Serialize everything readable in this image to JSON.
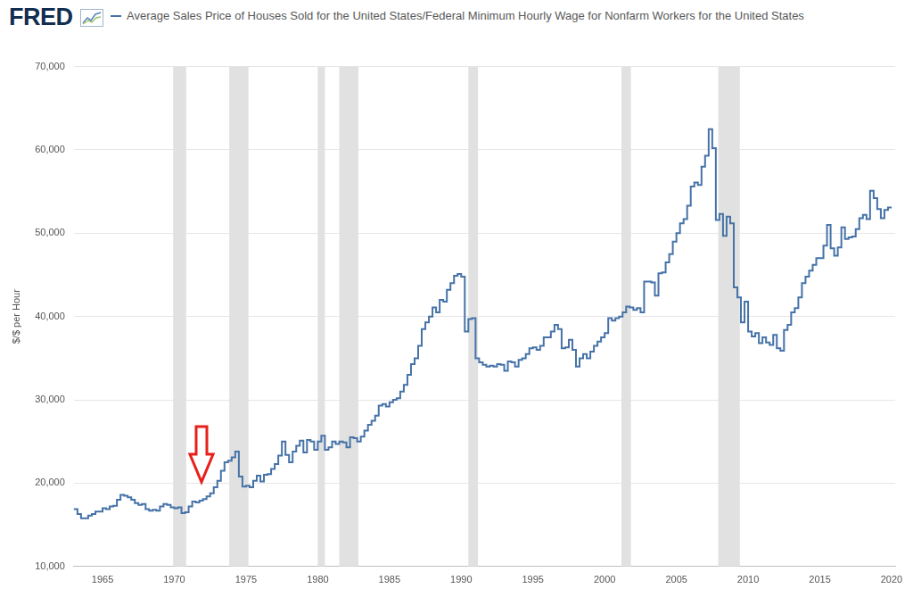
{
  "chart_data": {
    "type": "line",
    "logo": "FRED",
    "title": "Average Sales Price of Houses Sold for the United States/Federal Minimum Hourly Wage for Nonfarm Workers for the United States",
    "y_label": "$/$ per Hour",
    "color": "#4572a7",
    "line_style": "step",
    "grid": true,
    "x": [
      1963,
      1963.25,
      1963.5,
      1963.75,
      1964,
      1964.25,
      1964.5,
      1964.75,
      1965,
      1965.25,
      1965.5,
      1965.75,
      1966,
      1966.25,
      1966.5,
      1966.75,
      1967,
      1967.25,
      1967.5,
      1967.75,
      1968,
      1968.25,
      1968.5,
      1968.75,
      1969,
      1969.25,
      1969.5,
      1969.75,
      1970,
      1970.25,
      1970.5,
      1970.75,
      1971,
      1971.25,
      1971.5,
      1971.75,
      1972,
      1972.25,
      1972.5,
      1972.75,
      1973,
      1973.25,
      1973.5,
      1973.75,
      1974,
      1974.25,
      1974.5,
      1974.75,
      1975,
      1975.25,
      1975.5,
      1975.75,
      1976,
      1976.25,
      1976.5,
      1976.75,
      1977,
      1977.25,
      1977.5,
      1977.75,
      1978,
      1978.25,
      1978.5,
      1978.75,
      1979,
      1979.25,
      1979.5,
      1979.75,
      1980,
      1980.25,
      1980.5,
      1980.75,
      1981,
      1981.25,
      1981.5,
      1981.75,
      1982,
      1982.25,
      1982.5,
      1982.75,
      1983,
      1983.25,
      1983.5,
      1983.75,
      1984,
      1984.25,
      1984.5,
      1984.75,
      1985,
      1985.25,
      1985.5,
      1985.75,
      1986,
      1986.25,
      1986.5,
      1986.75,
      1987,
      1987.25,
      1987.5,
      1987.75,
      1988,
      1988.25,
      1988.5,
      1988.75,
      1989,
      1989.25,
      1989.5,
      1989.75,
      1990,
      1990.25,
      1990.5,
      1990.75,
      1991,
      1991.25,
      1991.5,
      1991.75,
      1992,
      1992.25,
      1992.5,
      1992.75,
      1993,
      1993.25,
      1993.5,
      1993.75,
      1994,
      1994.25,
      1994.5,
      1994.75,
      1995,
      1995.25,
      1995.5,
      1995.75,
      1996,
      1996.25,
      1996.5,
      1996.75,
      1997,
      1997.25,
      1997.5,
      1997.75,
      1998,
      1998.25,
      1998.5,
      1998.75,
      1999,
      1999.25,
      1999.5,
      1999.75,
      2000,
      2000.25,
      2000.5,
      2000.75,
      2001,
      2001.25,
      2001.5,
      2001.75,
      2002,
      2002.25,
      2002.5,
      2002.75,
      2003,
      2003.25,
      2003.5,
      2003.75,
      2004,
      2004.25,
      2004.5,
      2004.75,
      2005,
      2005.25,
      2005.5,
      2005.75,
      2006,
      2006.25,
      2006.5,
      2006.75,
      2007,
      2007.25,
      2007.5,
      2007.75,
      2008,
      2008.25,
      2008.5,
      2008.75,
      2009,
      2009.25,
      2009.5,
      2009.75,
      2010,
      2010.25,
      2010.5,
      2010.75,
      2011,
      2011.25,
      2011.5,
      2011.75,
      2012,
      2012.25,
      2012.5,
      2012.75,
      2013,
      2013.25,
      2013.5,
      2013.75,
      2014,
      2014.25,
      2014.5,
      2014.75,
      2015,
      2015.25,
      2015.5,
      2015.75,
      2016,
      2016.25,
      2016.5,
      2016.75,
      2017,
      2017.25,
      2017.5,
      2017.75,
      2018,
      2018.25,
      2018.5,
      2018.75,
      2019,
      2019.25,
      2019.5,
      2019.75,
      2020
    ],
    "values": [
      16800,
      16900,
      16300,
      15800,
      15800,
      16100,
      16300,
      16600,
      16600,
      17000,
      16900,
      17200,
      17300,
      18000,
      18600,
      18500,
      18300,
      18000,
      17600,
      17400,
      17500,
      16900,
      16700,
      16800,
      16700,
      17200,
      17500,
      17400,
      17100,
      17000,
      17100,
      16400,
      16500,
      17200,
      17800,
      17700,
      17900,
      18100,
      18400,
      18800,
      19500,
      20300,
      21500,
      22500,
      22700,
      23100,
      23800,
      20800,
      19600,
      19700,
      19500,
      20300,
      20900,
      20200,
      21000,
      21100,
      21700,
      22300,
      23300,
      25000,
      23400,
      22500,
      23800,
      24500,
      25100,
      23700,
      25200,
      25000,
      24000,
      25000,
      25700,
      24000,
      24300,
      25000,
      24700,
      25000,
      24900,
      24300,
      25500,
      25400,
      25000,
      25600,
      26300,
      27000,
      27500,
      28100,
      29300,
      29500,
      29200,
      29700,
      30000,
      30200,
      31000,
      31800,
      33000,
      34300,
      35000,
      36500,
      38500,
      39300,
      40000,
      41100,
      40500,
      42000,
      41800,
      43200,
      44000,
      44900,
      45100,
      44800,
      38200,
      39700,
      39800,
      35000,
      34500,
      34200,
      34000,
      34100,
      34000,
      34300,
      34200,
      33500,
      34600,
      34500,
      34000,
      34800,
      35000,
      35500,
      36200,
      36300,
      36000,
      36500,
      37500,
      37500,
      38200,
      39000,
      38500,
      36200,
      36300,
      37200,
      36000,
      34000,
      35000,
      35500,
      35000,
      35800,
      36500,
      37000,
      37500,
      38000,
      39800,
      39500,
      39800,
      40000,
      40500,
      41200,
      41100,
      40800,
      41000,
      40500,
      44200,
      44200,
      44100,
      42500,
      45200,
      45300,
      46500,
      47500,
      49000,
      50000,
      51200,
      51700,
      53300,
      55600,
      56100,
      55800,
      58000,
      59300,
      62500,
      60200,
      51600,
      52300,
      49700,
      52000,
      51200,
      43500,
      42300,
      39300,
      41800,
      38200,
      37600,
      38000,
      36800,
      37500,
      36900,
      36600,
      37800,
      36200,
      35900,
      38400,
      39000,
      40500,
      41000,
      42300,
      44000,
      44800,
      45500,
      46200,
      47000,
      47000,
      48500,
      51000,
      48200,
      47300,
      48300,
      50700,
      49300,
      49500,
      49600,
      50500,
      51800,
      52200,
      51700,
      55100,
      54200,
      52900,
      51800,
      52800,
      53100
    ],
    "recessions": [
      [
        1969.92,
        1970.83
      ],
      [
        1973.83,
        1975.17
      ],
      [
        1980.0,
        1980.5
      ],
      [
        1981.5,
        1982.83
      ],
      [
        1990.5,
        1991.17
      ],
      [
        2001.17,
        2001.83
      ],
      [
        2007.92,
        2009.42
      ]
    ],
    "xlim": [
      1963,
      2020.25
    ],
    "xticks": [
      1965,
      1970,
      1975,
      1980,
      1985,
      1990,
      1995,
      2000,
      2005,
      2010,
      2015,
      2020
    ],
    "ylim": [
      10000,
      70000
    ],
    "yticks": [
      {
        "value": 10000,
        "label": "10,000"
      },
      {
        "value": 20000,
        "label": "20,000"
      },
      {
        "value": 30000,
        "label": "30,000"
      },
      {
        "value": 40000,
        "label": "40,000"
      },
      {
        "value": 50000,
        "label": "50,000"
      },
      {
        "value": 60000,
        "label": "60,000"
      },
      {
        "value": 70000,
        "label": "70,000"
      }
    ]
  }
}
